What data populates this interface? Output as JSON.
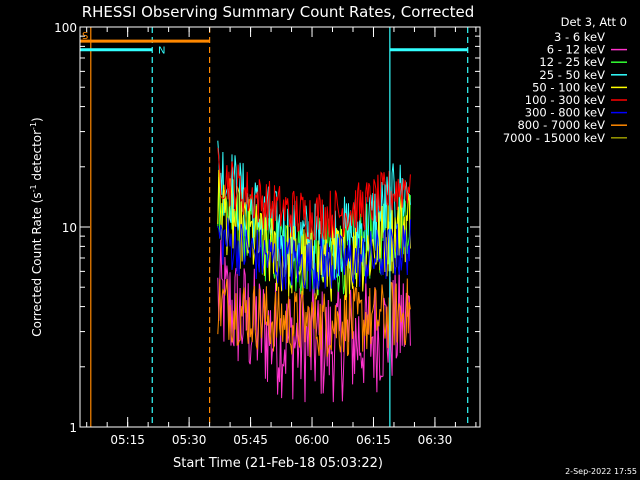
{
  "chart_data": {
    "type": "line",
    "title": "RHESSI Observing Summary Count Rates, Corrected",
    "xlabel": "Start Time (21-Feb-18 05:03:22)",
    "ylabel_main": "Corrected Count Rate (s",
    "ylabel_sup1": "-1",
    "ylabel_mid": " detector",
    "ylabel_sup2": "-1",
    "ylabel_end": ")",
    "yscale": "log",
    "ylim": [
      1,
      100
    ],
    "xlim_minutes": [
      "05:03:22",
      "06:41:00"
    ],
    "x_ticks": [
      "05:15",
      "05:30",
      "05:45",
      "06:00",
      "06:15",
      "06:30"
    ],
    "y_ticks": [
      "1",
      "10",
      "100"
    ],
    "legend": {
      "placement": "right",
      "header": "Det 3, Att 0",
      "entries": [
        {
          "label": "3 - 6 keV",
          "color": "#000000"
        },
        {
          "label": "6 - 12 keV",
          "color": "#ff33cc"
        },
        {
          "label": "12 - 25 keV",
          "color": "#33ff33"
        },
        {
          "label": "25 - 50 keV",
          "color": "#33ffff"
        },
        {
          "label": "50 - 100 keV",
          "color": "#ffff00"
        },
        {
          "label": "100 - 300 keV",
          "color": "#ff0000"
        },
        {
          "label": "300 - 800 keV",
          "color": "#0000ff"
        },
        {
          "label": "800 - 7000 keV",
          "color": "#ff8800"
        },
        {
          "label": "7000 - 15000 keV",
          "color": "#999900"
        }
      ]
    },
    "segment_labels": [
      {
        "text": "S",
        "color": "#ff8800"
      },
      {
        "text": "N",
        "color": "#33ffff"
      }
    ],
    "flag_bars": [
      {
        "label": "S",
        "color": "#ff8800",
        "start": "05:03:22",
        "end": "05:35:00",
        "y": 85
      },
      {
        "label": "N",
        "color": "#33ffff",
        "start": "05:03:22",
        "end": "05:21:00",
        "y": 77
      },
      {
        "label": "N",
        "color": "#33ffff",
        "start": "06:19:00",
        "end": "06:38:00",
        "y": 77
      }
    ],
    "vertical_markers": [
      {
        "time": "05:06:00",
        "color": "#ff8800",
        "style": "solid"
      },
      {
        "time": "05:21:00",
        "color": "#33ffff",
        "style": "dashed"
      },
      {
        "time": "05:35:00",
        "color": "#ff8800",
        "style": "dashed"
      },
      {
        "time": "06:19:00",
        "color": "#33ffff",
        "style": "solid"
      },
      {
        "time": "06:38:00",
        "color": "#33ffff",
        "style": "dashed"
      }
    ],
    "data_window": {
      "start": "05:37:00",
      "end": "06:24:00"
    },
    "series": [
      {
        "name": "6 - 12 keV",
        "color": "#ff33cc",
        "start": 4.5,
        "mid": 2.6,
        "end": 3.5,
        "spread": 2.0
      },
      {
        "name": "12 - 25 keV",
        "color": "#33ff33",
        "start": 14,
        "mid": 7.0,
        "end": 12,
        "spread": 1.6
      },
      {
        "name": "25 - 50 keV",
        "color": "#33ffff",
        "start": 20,
        "mid": 8.5,
        "end": 16,
        "spread": 1.6
      },
      {
        "name": "50 - 100 keV",
        "color": "#ffff00",
        "start": 13,
        "mid": 6.5,
        "end": 11,
        "spread": 1.6
      },
      {
        "name": "800 - 7000 keV",
        "color": "#ff8800",
        "start": 4.2,
        "mid": 3.3,
        "end": 3.8,
        "spread": 1.5
      },
      {
        "name": "300 - 800 keV",
        "color": "#0000ff",
        "start": 9,
        "mid": 6.5,
        "end": 8,
        "spread": 1.4
      },
      {
        "name": "100 - 300 keV",
        "color": "#ff0000",
        "start": 19,
        "mid": 11.5,
        "end": 17,
        "spread": 1.35
      }
    ]
  },
  "footer": {
    "date_stamp": "2-Sep-2022 17:55"
  }
}
